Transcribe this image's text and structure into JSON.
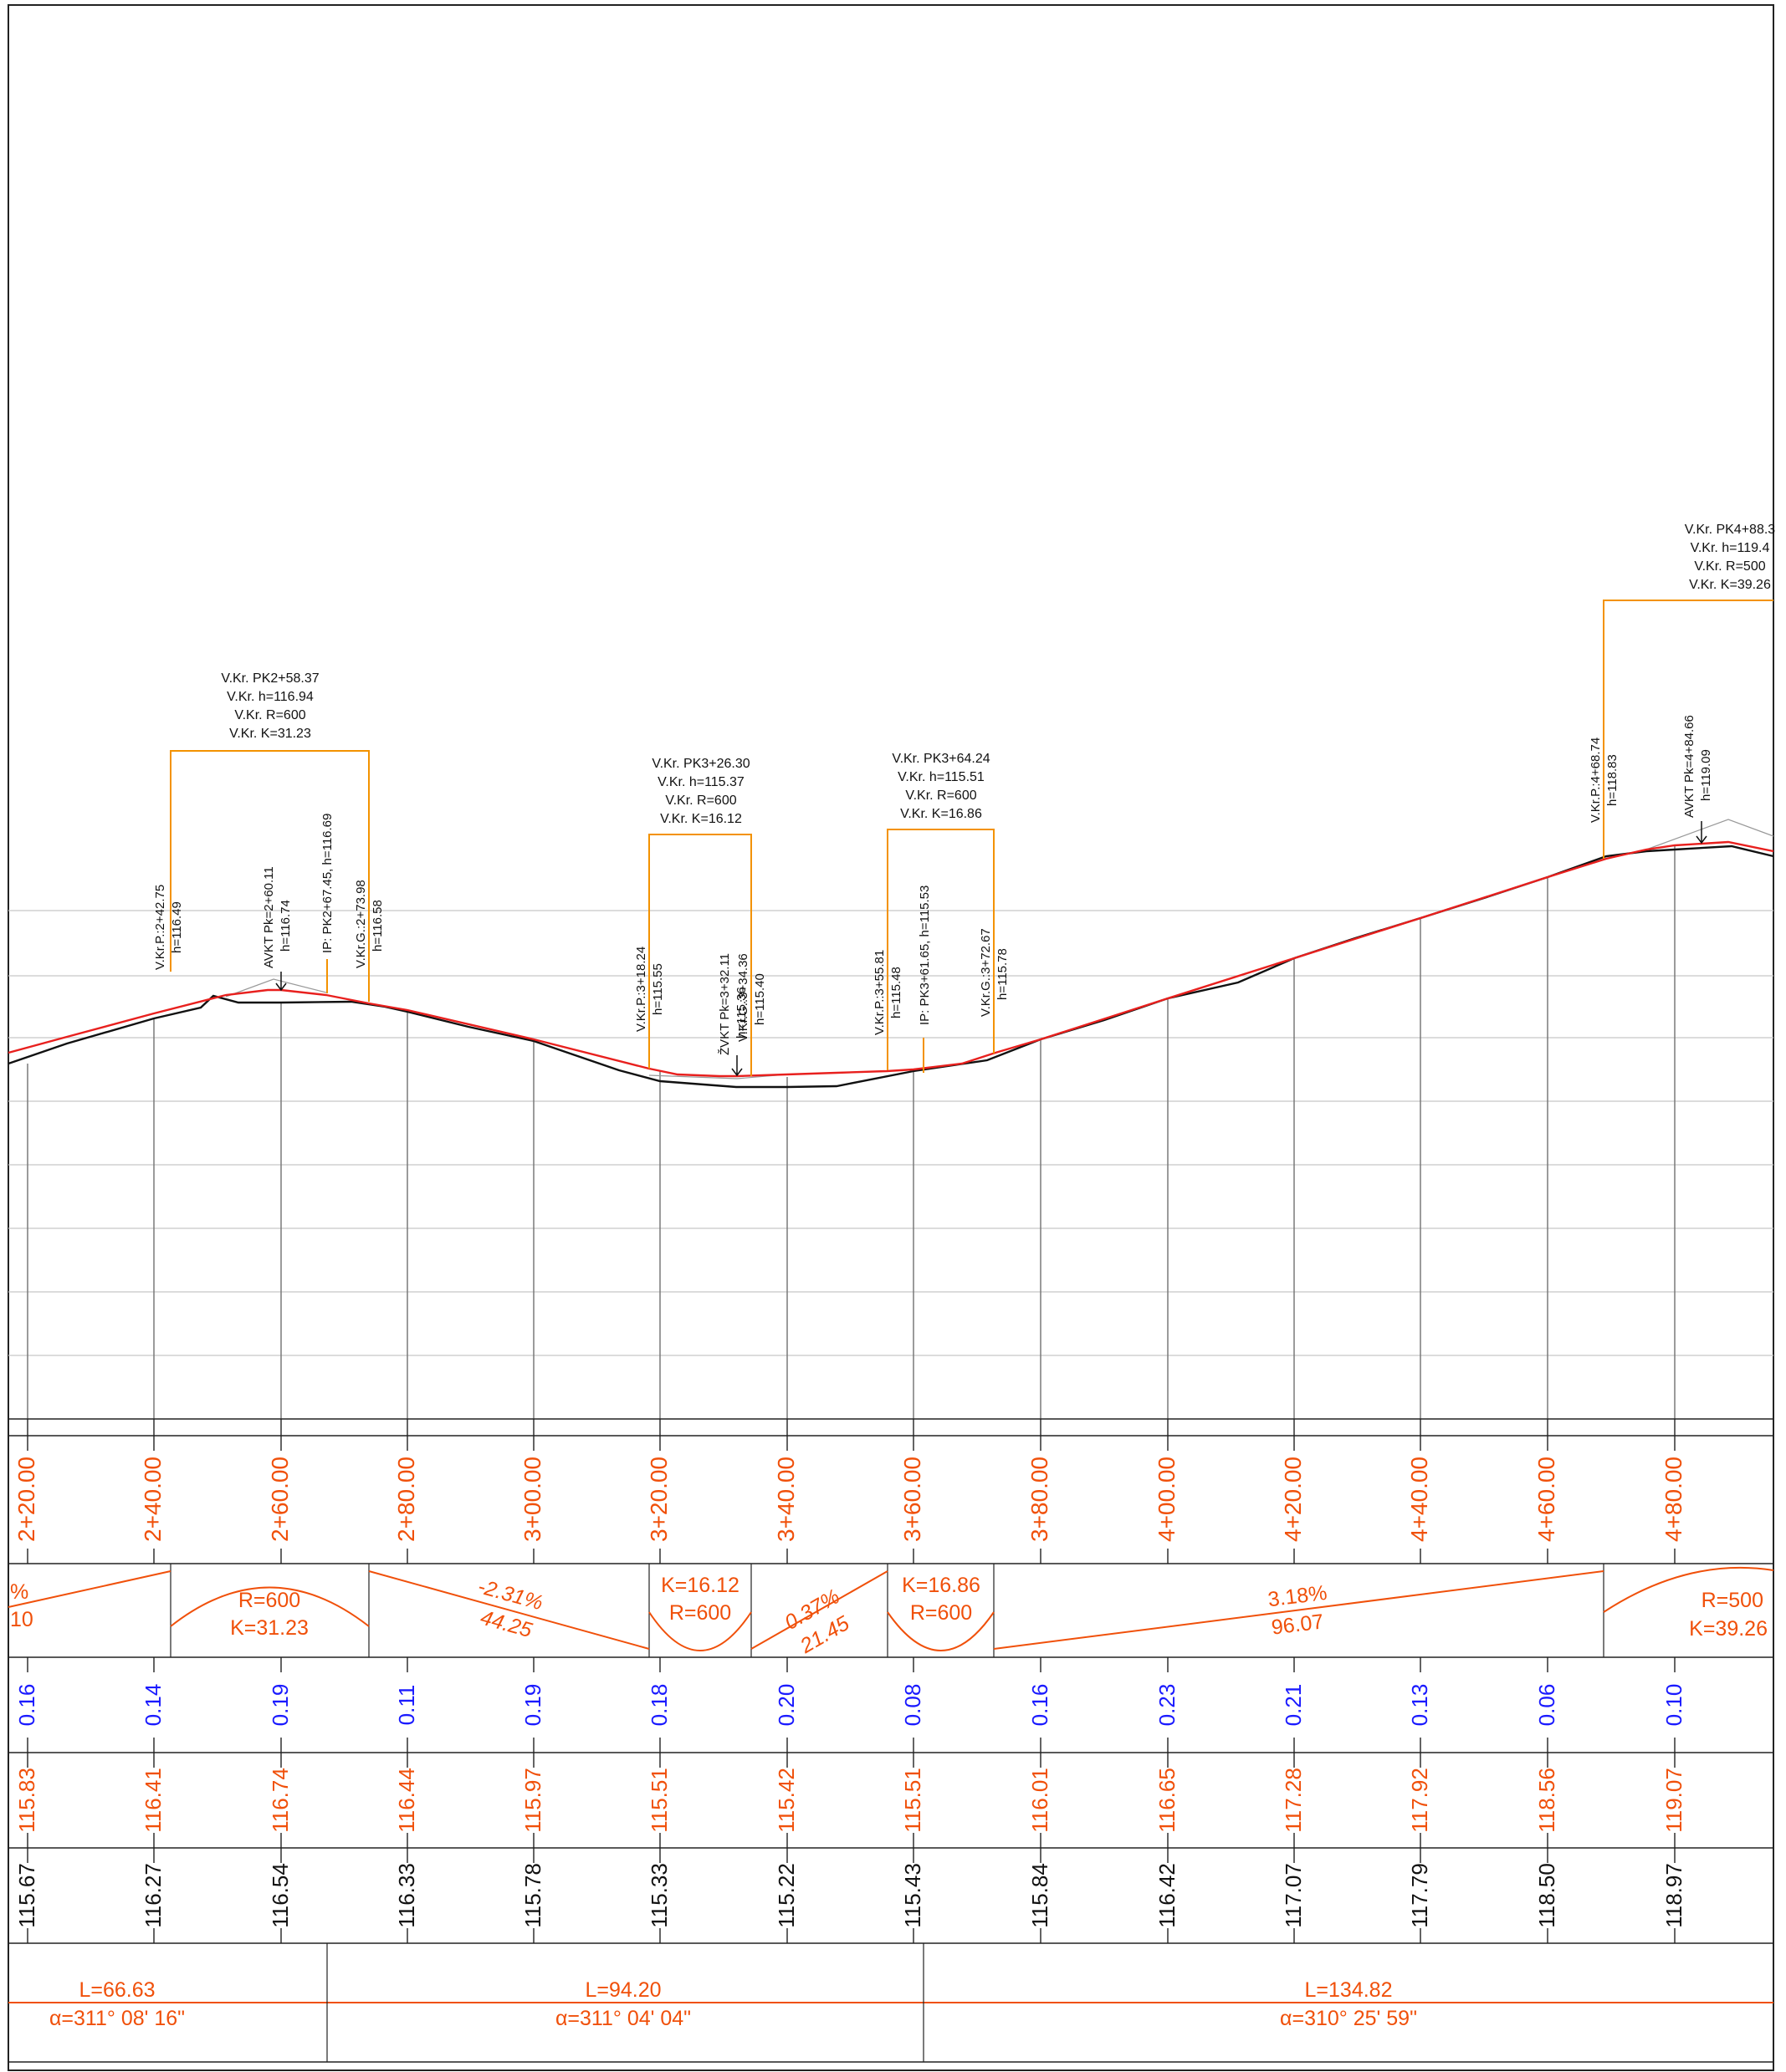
{
  "colors": {
    "design_line": "#e8201e",
    "terrain_line": "#111111",
    "annotation": "#f39200",
    "label_orange": "#f0500a",
    "depth_blue": "#1a1aff",
    "grid": "#c8c8c8",
    "station_line": "#7a7a7a",
    "frame": "#222222"
  },
  "vertical_curves": [
    {
      "id": "vk1",
      "lines": [
        "V.Kr. PK2+58.37",
        "V.Kr. h=116.94",
        "V.Kr. R=600",
        "V.Kr. K=31.23"
      ]
    },
    {
      "id": "vk2",
      "lines": [
        "V.Kr. PK3+26.30",
        "V.Kr. h=115.37",
        "V.Kr. R=600",
        "V.Kr. K=16.12"
      ]
    },
    {
      "id": "vk3",
      "lines": [
        "V.Kr. PK3+64.24",
        "V.Kr. h=115.51",
        "V.Kr. R=600",
        "V.Kr. K=16.86"
      ]
    },
    {
      "id": "vk4",
      "lines": [
        "V.Kr. PK4+88.3",
        "V.Kr. h=119.4",
        "V.Kr. R=500",
        "V.Kr. K=39.26"
      ]
    }
  ],
  "point_labels": [
    {
      "id": "p1",
      "lines": [
        "V.Kr.P.:2+42.75",
        "h=116.49"
      ]
    },
    {
      "id": "p2",
      "lines": [
        "AVKT Pk=2+60.11",
        "h=116.74"
      ]
    },
    {
      "id": "p3",
      "lines": [
        "IP: PK2+67.45, h=116.69"
      ]
    },
    {
      "id": "p4",
      "lines": [
        "V.Kr.G.:2+73.98",
        "h=116.58"
      ]
    },
    {
      "id": "p5",
      "lines": [
        "V.Kr.P.:3+18.24",
        "h=115.55"
      ]
    },
    {
      "id": "p6",
      "lines": [
        "ŽVKT Pk=3+32.11",
        "h=115.36"
      ]
    },
    {
      "id": "p7",
      "lines": [
        "V.Kr.G.:3+34.36",
        "h=115.40"
      ]
    },
    {
      "id": "p8",
      "lines": [
        "V.Kr.P.:3+55.81",
        "h=115.48"
      ]
    },
    {
      "id": "p9",
      "lines": [
        "IP: PK3+61.65, h=115.53"
      ]
    },
    {
      "id": "p10",
      "lines": [
        "V.Kr.G.:3+72.67",
        "h=115.78"
      ]
    },
    {
      "id": "p11",
      "lines": [
        "V.Kr.P.:4+68.74",
        "h=118.83"
      ]
    },
    {
      "id": "p12",
      "lines": [
        "AVKT Pk=4+84.66",
        "h=119.09"
      ]
    }
  ],
  "stations": [
    "2+20.00",
    "2+40.00",
    "2+60.00",
    "2+80.00",
    "3+00.00",
    "3+20.00",
    "3+40.00",
    "3+60.00",
    "3+80.00",
    "4+00.00",
    "4+20.00",
    "4+40.00",
    "4+60.00",
    "4+80.00"
  ],
  "depths": [
    "0.16",
    "0.14",
    "0.19",
    "0.11",
    "0.19",
    "0.18",
    "0.20",
    "0.08",
    "0.16",
    "0.23",
    "0.21",
    "0.13",
    "0.06",
    "0.10"
  ],
  "design_elevations": [
    "115.83",
    "116.41",
    "116.74",
    "116.44",
    "115.97",
    "115.51",
    "115.42",
    "115.51",
    "116.01",
    "116.65",
    "117.28",
    "117.92",
    "118.56",
    "119.07"
  ],
  "terrain_elevations": [
    "115.67",
    "116.27",
    "116.54",
    "116.33",
    "115.78",
    "115.33",
    "115.22",
    "115.43",
    "115.84",
    "116.42",
    "117.07",
    "117.79",
    "118.50",
    "118.97"
  ],
  "grade_band": {
    "partial_left": {
      "grade": "%",
      "length": "10"
    },
    "curve1": {
      "r": "R=600",
      "k": "K=31.23"
    },
    "grade1": {
      "grade": "-2.31%",
      "length": "44.25"
    },
    "curve2": {
      "k": "K=16.12",
      "r": "R=600"
    },
    "grade2": {
      "grade": "0.37%",
      "length": "21.45"
    },
    "curve3": {
      "k": "K=16.86",
      "r": "R=600"
    },
    "grade3": {
      "grade": "3.18%",
      "length": "96.07"
    },
    "curve4": {
      "r": "R=500",
      "k": "K=39.26"
    }
  },
  "alignment": [
    {
      "length": "L=66.63",
      "azimuth": "α=311° 08' 16\""
    },
    {
      "length": "L=94.20",
      "azimuth": "α=311° 04' 04\""
    },
    {
      "length": "L=134.82",
      "azimuth": "α=310° 25' 59\""
    }
  ]
}
